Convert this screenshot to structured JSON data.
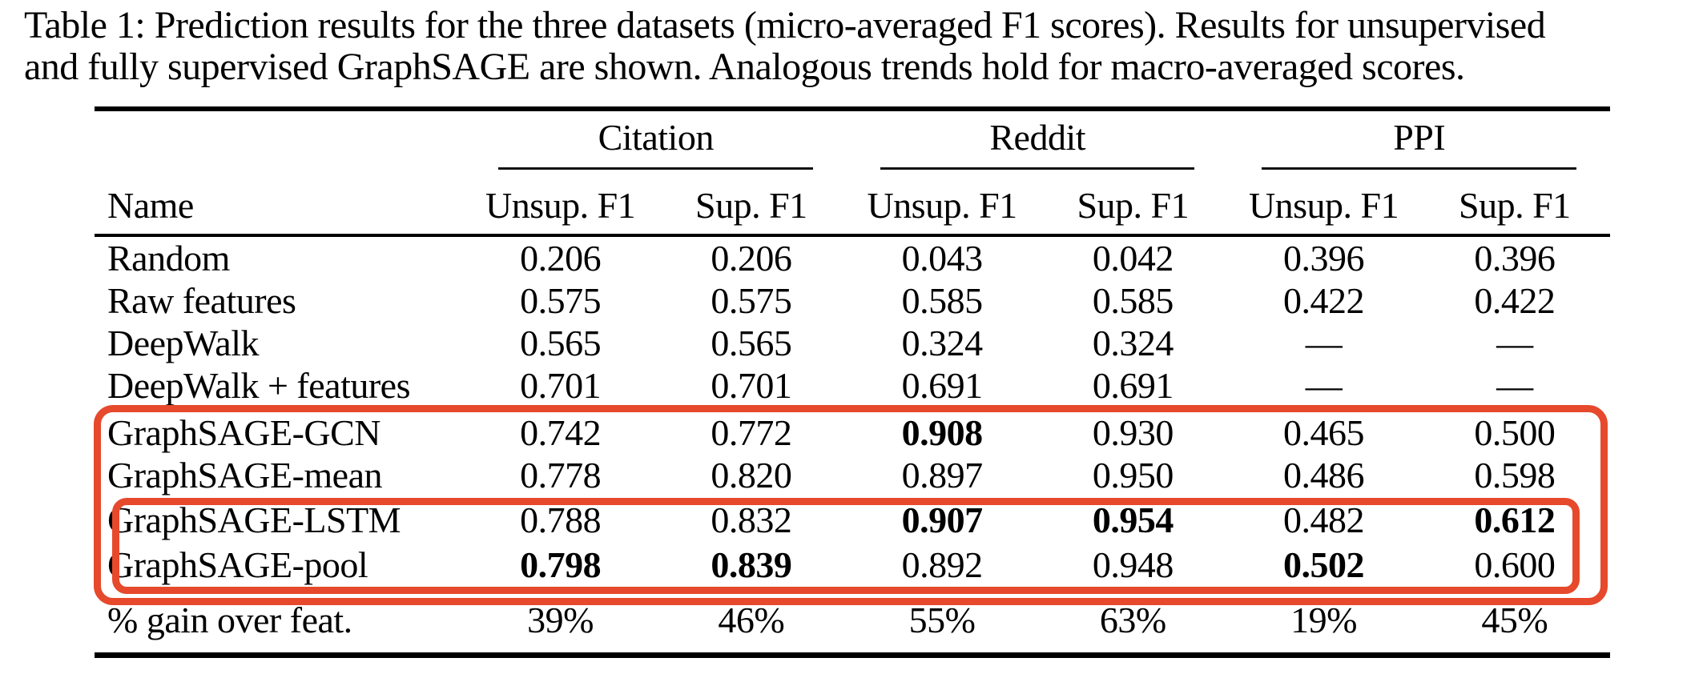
{
  "caption": {
    "line1": "Table 1: Prediction results for the three datasets (micro-averaged F1 scores). Results for unsupervised",
    "line2": "and fully supervised GraphSAGE are shown. Analogous trends hold for macro-averaged scores."
  },
  "table": {
    "name_header": "Name",
    "groups": [
      {
        "label": "Citation"
      },
      {
        "label": "Reddit"
      },
      {
        "label": "PPI"
      }
    ],
    "subheaders": [
      "Unsup. F1",
      "Sup. F1",
      "Unsup. F1",
      "Sup. F1",
      "Unsup. F1",
      "Sup. F1"
    ],
    "rows": [
      {
        "name": "Random",
        "values": [
          "0.206",
          "0.206",
          "0.043",
          "0.042",
          "0.396",
          "0.396"
        ],
        "bold": [
          false,
          false,
          false,
          false,
          false,
          false
        ]
      },
      {
        "name": "Raw features",
        "values": [
          "0.575",
          "0.575",
          "0.585",
          "0.585",
          "0.422",
          "0.422"
        ],
        "bold": [
          false,
          false,
          false,
          false,
          false,
          false
        ]
      },
      {
        "name": "DeepWalk",
        "values": [
          "0.565",
          "0.565",
          "0.324",
          "0.324",
          "—",
          "—"
        ],
        "bold": [
          false,
          false,
          false,
          false,
          false,
          false
        ]
      },
      {
        "name": "DeepWalk + features",
        "values": [
          "0.701",
          "0.701",
          "0.691",
          "0.691",
          "—",
          "—"
        ],
        "bold": [
          false,
          false,
          false,
          false,
          false,
          false
        ]
      },
      {
        "name": "GraphSAGE-GCN",
        "values": [
          "0.742",
          "0.772",
          "0.908",
          "0.930",
          "0.465",
          "0.500"
        ],
        "bold": [
          false,
          false,
          true,
          false,
          false,
          false
        ]
      },
      {
        "name": "GraphSAGE-mean",
        "values": [
          "0.778",
          "0.820",
          "0.897",
          "0.950",
          "0.486",
          "0.598"
        ],
        "bold": [
          false,
          false,
          false,
          false,
          false,
          false
        ]
      },
      {
        "name": "GraphSAGE-LSTM",
        "values": [
          "0.788",
          "0.832",
          "0.907",
          "0.954",
          "0.482",
          "0.612"
        ],
        "bold": [
          false,
          false,
          true,
          true,
          false,
          true
        ]
      },
      {
        "name": "GraphSAGE-pool",
        "values": [
          "0.798",
          "0.839",
          "0.892",
          "0.948",
          "0.502",
          "0.600"
        ],
        "bold": [
          true,
          true,
          false,
          false,
          true,
          false
        ]
      }
    ],
    "gain_row": {
      "name": "% gain over feat.",
      "values": [
        "39%",
        "46%",
        "55%",
        "63%",
        "19%",
        "45%"
      ]
    }
  },
  "annotations": {
    "highlight_color": "#e6492c",
    "outer_box": "graphsage-methods-highlight",
    "inner_box": "lstm-pool-methods-highlight"
  }
}
